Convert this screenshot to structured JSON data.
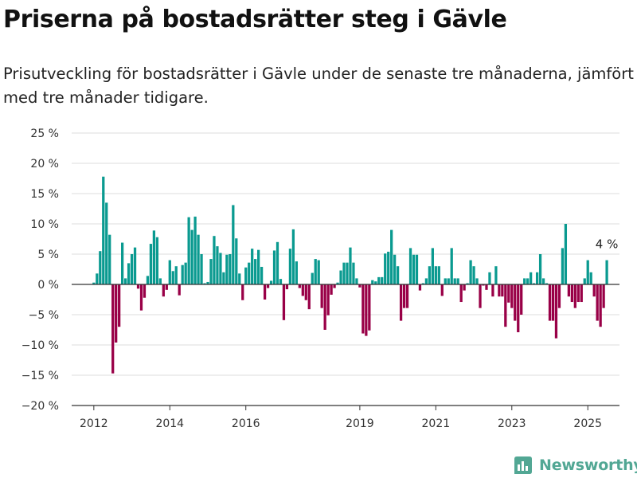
{
  "title": "Priserna på bostadsrätter steg i Gävle",
  "subtitle": "Prisutveckling för bostadsrätter i Gävle under de senaste tre månaderna, jämfört med tre månader tidigare.",
  "brand": {
    "name": "Newsworthy",
    "icon": "bar-chart-logo-icon",
    "color": "#52a794"
  },
  "colors": {
    "positive": "#0a9a90",
    "negative": "#990047",
    "grid": "#dcdcdc",
    "zero_line": "#333333"
  },
  "chart_data": {
    "type": "bar",
    "title": "",
    "xlabel": "",
    "ylabel": "",
    "unit": "%",
    "ylim": [
      -20,
      25
    ],
    "yticks": [
      25,
      20,
      15,
      10,
      5,
      0,
      -5,
      -10,
      -15,
      -20
    ],
    "ytick_labels": [
      "25 %",
      "20 %",
      "15 %",
      "10 %",
      "5 %",
      "0 %",
      "−5 %",
      "−10 %",
      "−15 %",
      "−20 %"
    ],
    "xlim": [
      "2011-06",
      "2025-11"
    ],
    "xticks": [
      {
        "date": "2012-01",
        "label": "2012"
      },
      {
        "date": "2014-01",
        "label": "2014"
      },
      {
        "date": "2016-01",
        "label": "2016"
      },
      {
        "date": "2019-01",
        "label": "2019"
      },
      {
        "date": "2021-01",
        "label": "2021"
      },
      {
        "date": "2023-01",
        "label": "2023"
      },
      {
        "date": "2025-01",
        "label": "2025"
      }
    ],
    "grid": true,
    "start": "2012-01",
    "frequency": "monthly",
    "values": [
      0.3,
      1.8,
      5.5,
      17.8,
      13.5,
      8.2,
      -14.7,
      -9.6,
      -7.0,
      6.9,
      1.0,
      3.5,
      5.0,
      6.1,
      -0.7,
      -4.3,
      -2.2,
      1.4,
      6.7,
      8.9,
      7.8,
      1.0,
      -2.0,
      -0.9,
      4.0,
      2.2,
      3.0,
      -1.8,
      3.2,
      3.6,
      11.1,
      9.0,
      11.2,
      8.2,
      5.0,
      0.2,
      0.4,
      4.2,
      8.0,
      6.3,
      5.2,
      2.0,
      4.9,
      5.0,
      13.1,
      7.6,
      1.8,
      -2.6,
      2.8,
      3.6,
      5.9,
      4.2,
      5.7,
      2.9,
      -2.5,
      -0.6,
      0.6,
      5.6,
      7.0,
      0.9,
      -5.9,
      -0.8,
      5.9,
      9.1,
      3.8,
      -0.6,
      -1.9,
      -2.6,
      -4.1,
      1.9,
      4.2,
      4.0,
      -3.9,
      -7.5,
      -5.1,
      -1.7,
      -0.6,
      0.3,
      2.3,
      3.6,
      3.6,
      6.1,
      3.6,
      1.0,
      -0.5,
      -8.1,
      -8.5,
      -7.6,
      0.7,
      0.5,
      1.2,
      1.2,
      5.1,
      5.4,
      9.0,
      4.9,
      3.0,
      -6.0,
      -3.9,
      -3.9,
      6.0,
      4.9,
      4.9,
      -1.0,
      0.2,
      1.0,
      3.0,
      6.0,
      3.0,
      3.0,
      -1.9,
      1.0,
      1.0,
      6.0,
      1.0,
      1.0,
      -2.9,
      -1.0,
      0.2,
      4.0,
      3.0,
      1.0,
      -3.9,
      -0.2,
      -0.9,
      2.0,
      -2.0,
      3.0,
      -2.0,
      -2.0,
      -7.0,
      -3.0,
      -3.9,
      -6.0,
      -7.9,
      -5.0,
      1.0,
      1.0,
      2.0,
      0.2,
      2.0,
      5.0,
      1.0,
      0.2,
      -6.0,
      -6.0,
      -8.9,
      -3.9,
      6.0,
      10.0,
      -2.0,
      -2.9,
      -3.9,
      -2.9,
      -2.9,
      1.0,
      4.0,
      2.0,
      -2.0,
      -6.0,
      -7.0,
      -3.9,
      4.0
    ],
    "annotations": [
      {
        "date": "2025-07",
        "value": 4,
        "label": "4 %"
      }
    ]
  }
}
